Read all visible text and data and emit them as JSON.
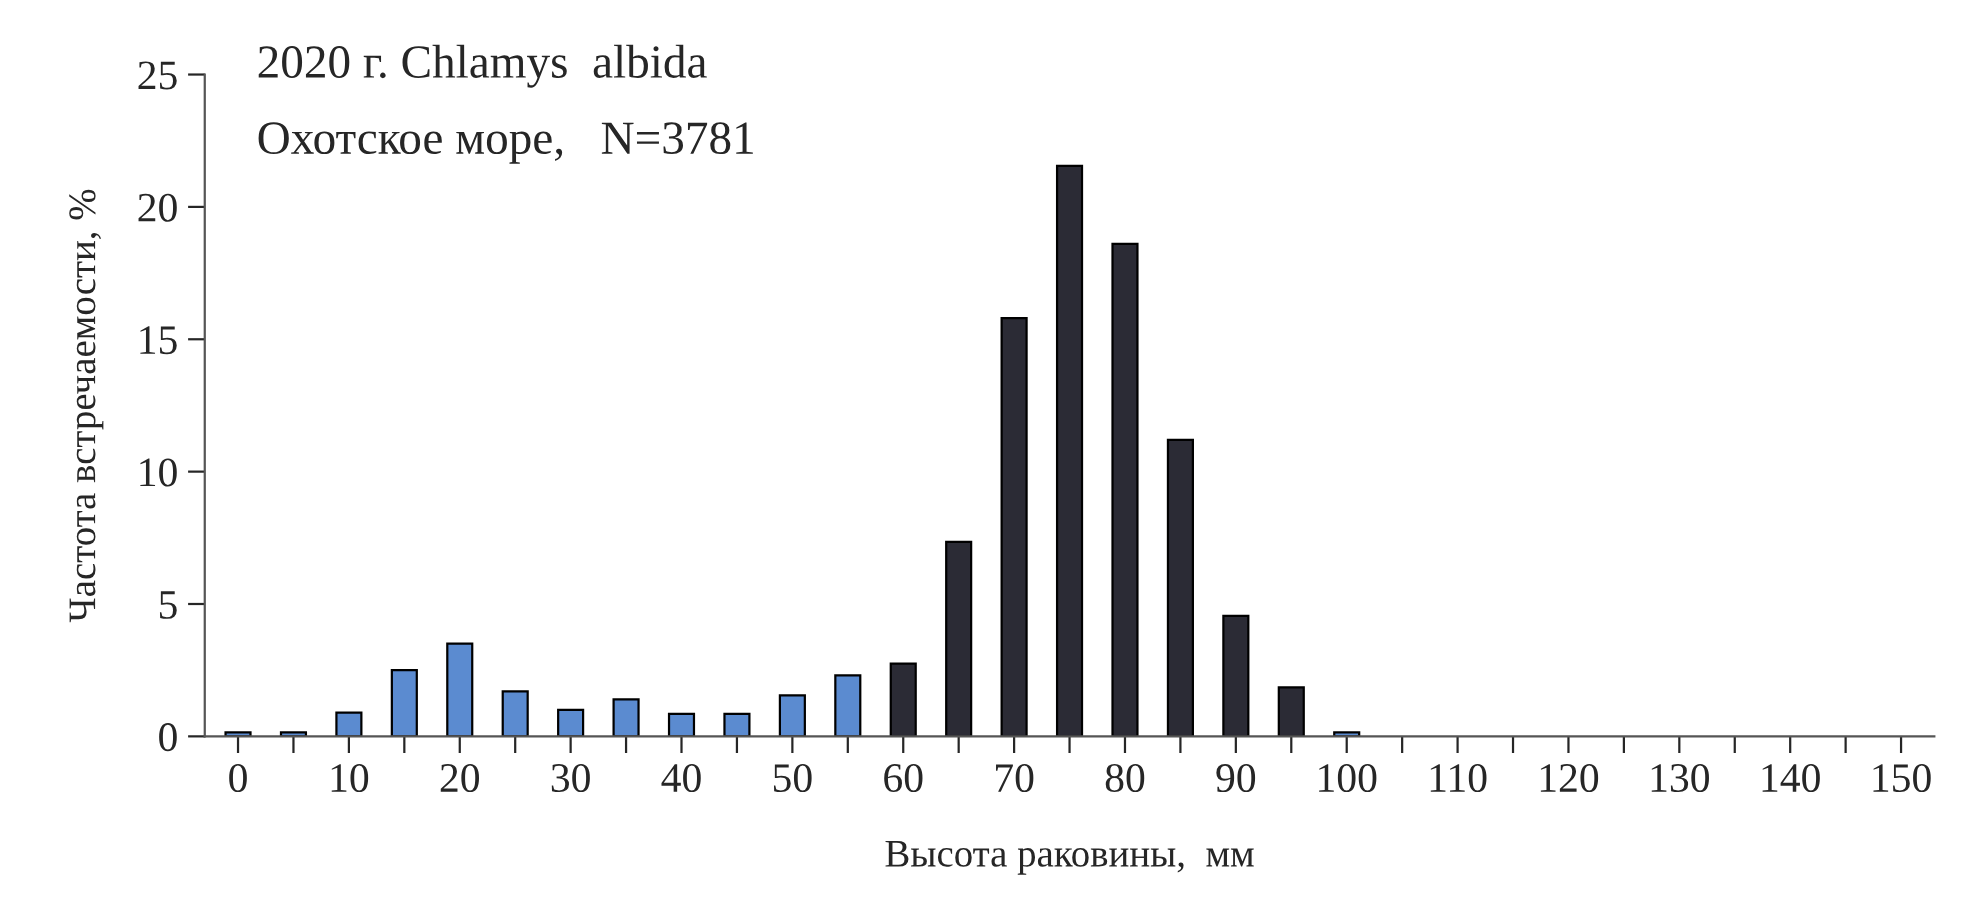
{
  "chart_data": {
    "type": "bar",
    "title": "2020 г. Chlamys  albida",
    "subtitle": "Охотское море,   N=3781",
    "xlabel": "Высота раковины,  мм",
    "ylabel": "Частота встречаемости, %",
    "categories": [
      "0",
      null,
      "10",
      null,
      "20",
      null,
      "30",
      null,
      "40",
      null,
      "50",
      null,
      "60",
      null,
      "70",
      null,
      "80",
      null,
      "90",
      null,
      "100",
      null,
      "110",
      null,
      "120",
      null,
      "130",
      null,
      "140",
      null,
      "150"
    ],
    "values": [
      0.15,
      0.15,
      0.9,
      2.5,
      3.5,
      1.7,
      1.0,
      1.4,
      0.85,
      0.85,
      1.55,
      2.3,
      2.75,
      7.35,
      15.8,
      21.55,
      18.6,
      11.2,
      4.55,
      1.85,
      0.15,
      null,
      null,
      null,
      null,
      null,
      null,
      null,
      null,
      null,
      null
    ],
    "colors": [
      "#5b8bd0",
      "#5b8bd0",
      "#5b8bd0",
      "#5b8bd0",
      "#5b8bd0",
      "#5b8bd0",
      "#5b8bd0",
      "#5b8bd0",
      "#5b8bd0",
      "#5b8bd0",
      "#5b8bd0",
      "#5b8bd0",
      "#2b2b35",
      "#2b2b35",
      "#2b2b35",
      "#2b2b35",
      "#2b2b35",
      "#2b2b35",
      "#2b2b35",
      "#2b2b35",
      "#5b8bd0",
      "#5b8bd0",
      "#5b8bd0",
      "#5b8bd0",
      "#5b8bd0",
      "#5b8bd0",
      "#5b8bd0",
      "#5b8bd0",
      "#5b8bd0",
      "#5b8bd0",
      "#5b8bd0"
    ],
    "ylim": [
      0,
      25
    ],
    "yticks": [
      0,
      5,
      10,
      15,
      20,
      25
    ],
    "grid": false,
    "legend": false
  }
}
